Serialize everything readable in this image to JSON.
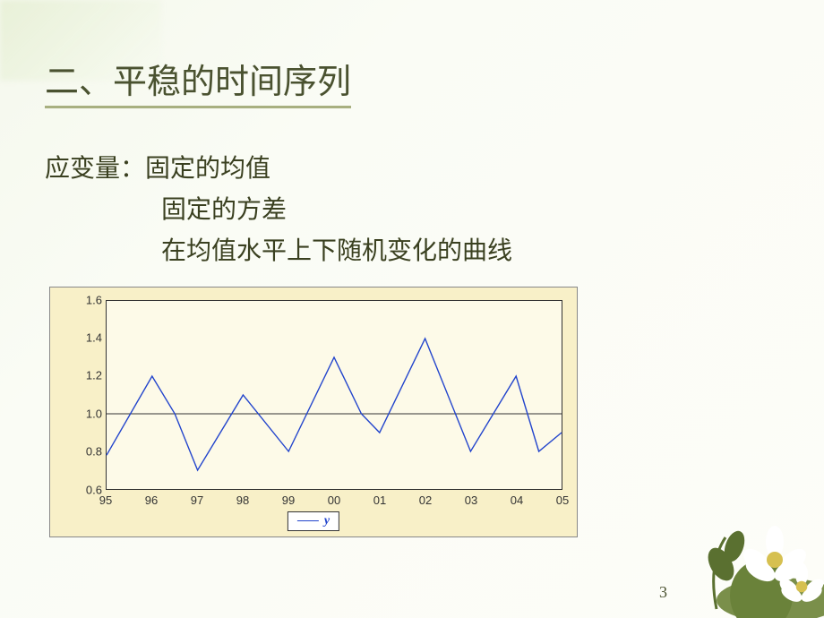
{
  "title": "二、平稳的时间序列",
  "body": {
    "line1": "应变量：固定的均值",
    "line2": "固定的方差",
    "line3": "在均值水平上下随机变化的曲线"
  },
  "chart": {
    "type": "line",
    "background_color": "#f8f0c8",
    "plot_background": "#fdfae8",
    "line_color": "#2244cc",
    "border_color": "#333333",
    "y": {
      "min": 0.6,
      "max": 1.6,
      "ticks": [
        0.6,
        0.8,
        1.0,
        1.2,
        1.4,
        1.6
      ]
    },
    "x": {
      "ticks": [
        "95",
        "96",
        "97",
        "98",
        "99",
        "00",
        "01",
        "02",
        "03",
        "04",
        "05"
      ]
    },
    "midline_value": 1.0,
    "data": [
      {
        "x": 0,
        "y": 0.78
      },
      {
        "x": 1,
        "y": 1.2
      },
      {
        "x": 1.5,
        "y": 1.0
      },
      {
        "x": 2,
        "y": 0.7
      },
      {
        "x": 3,
        "y": 1.1
      },
      {
        "x": 4,
        "y": 0.8
      },
      {
        "x": 5,
        "y": 1.3
      },
      {
        "x": 5.6,
        "y": 1.0
      },
      {
        "x": 6,
        "y": 0.9
      },
      {
        "x": 7,
        "y": 1.4
      },
      {
        "x": 8,
        "y": 0.8
      },
      {
        "x": 9,
        "y": 1.2
      },
      {
        "x": 9.5,
        "y": 0.8
      },
      {
        "x": 10,
        "y": 0.9
      }
    ],
    "legend": {
      "label": "y"
    },
    "font_size_axis": 13
  },
  "page_number": "3"
}
